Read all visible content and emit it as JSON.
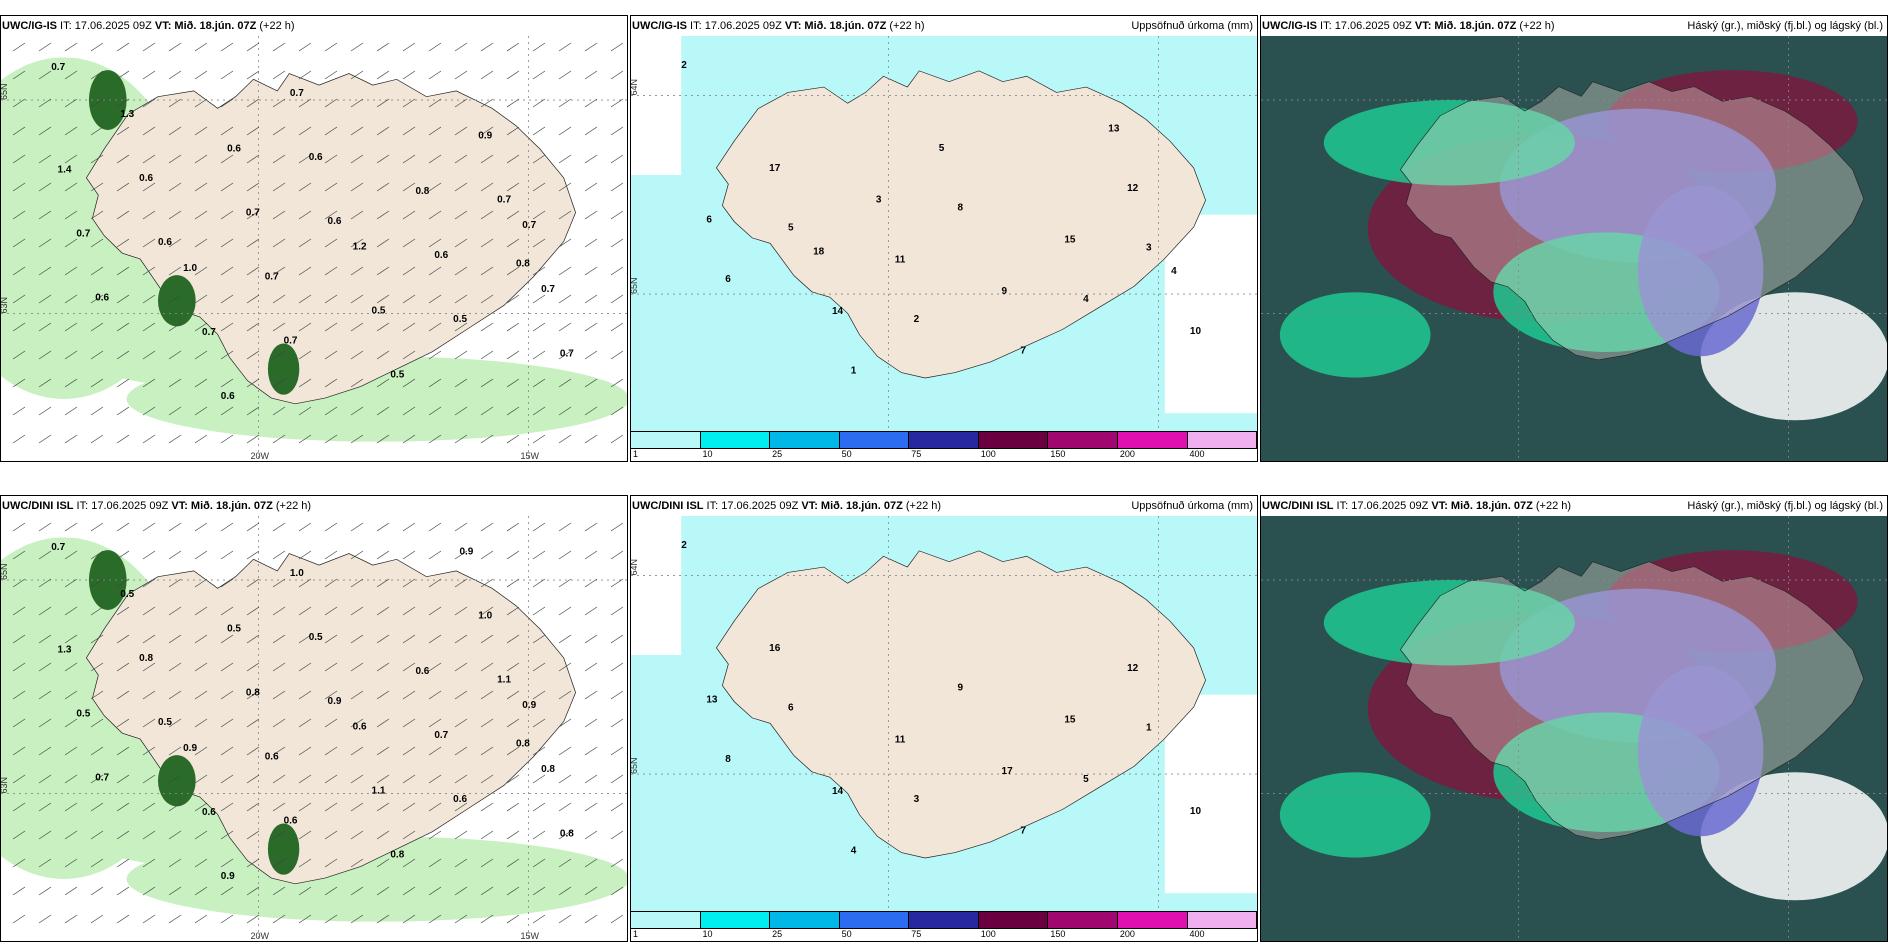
{
  "panels": [
    {
      "id": "igis-wind",
      "model": "UWC/IG-IS",
      "issue_text": " IT: 17.06.2025 09Z ",
      "valid_text": "VT: Mið. 18.jún. 07Z",
      "lead_text": " (+22 h)",
      "title_right": "",
      "labels": [
        "0.7",
        "0.7",
        "0.8",
        "0.6",
        "0.5",
        "0.6",
        "0.5",
        "0.6",
        "0.6",
        "0.7",
        "0.7",
        "0.7",
        "0.7",
        "0.6",
        "0.6",
        "0.5",
        "0.7",
        "0.6",
        "0.7",
        "0.7",
        "0.9",
        "1.0",
        "0.8",
        "1.3",
        "1.2",
        "1.4",
        "0.7",
        "0.7",
        "0.6"
      ],
      "ticks": [
        "20W",
        "15W",
        "63N",
        "65N"
      ]
    },
    {
      "id": "igis-precip",
      "model": "UWC/IG-IS",
      "issue_text": " IT: 17.06.2025 09Z ",
      "valid_text": "VT: Mið. 18.jún. 07Z",
      "lead_text": " (+22 h)",
      "title_right": "Uppsöfnuð úrkoma (mm)",
      "labels": [
        "2",
        "2",
        "3",
        "1",
        "4",
        "5",
        "7",
        "6",
        "8",
        "10",
        "11",
        "12",
        "14",
        "15",
        "17",
        "9",
        "6",
        "5",
        "4",
        "3",
        "13",
        "18"
      ],
      "ticks": [
        "65N",
        "64N"
      ]
    },
    {
      "id": "igis-cloud",
      "model": "UWC/IG-IS",
      "issue_text": " IT: 17.06.2025 09Z ",
      "valid_text": "VT: Mið. 18.jún. 07Z",
      "lead_text": " (+22 h)",
      "title_right": "Háský (gr.), miðský (fj.bl.) og lágský (bl.)",
      "labels": [],
      "ticks": []
    },
    {
      "id": "dini-wind",
      "model": "UWC/DINI ISL",
      "issue_text": " IT: 17.06.2025 09Z ",
      "valid_text": "VT: Mið. 18.jún. 07Z",
      "lead_text": " (+22 h)",
      "title_right": "",
      "labels": [
        "0.7",
        "0.6",
        "0.8",
        "0.9",
        "0.6",
        "0.5",
        "0.8",
        "0.7",
        "0.9",
        "0.8",
        "0.6",
        "1.1",
        "0.6",
        "0.7",
        "0.8",
        "1.1",
        "0.5",
        "0.5",
        "0.8",
        "0.8",
        "1.0",
        "0.9",
        "0.6",
        "0.5",
        "0.6",
        "1.3",
        "1.0",
        "0.9",
        "0.5",
        "0.9"
      ],
      "ticks": [
        "20W",
        "15W",
        "63N",
        "65N"
      ]
    },
    {
      "id": "dini-precip",
      "model": "UWC/DINI ISL",
      "issue_text": " IT: 17.06.2025 09Z ",
      "valid_text": "VT: Mið. 18.jún. 07Z",
      "lead_text": " (+22 h)",
      "title_right": "Uppsöfnuð úrkoma (mm)",
      "labels": [
        "2",
        "3",
        "1",
        "4",
        "5",
        "6",
        "7",
        "8",
        "9",
        "10",
        "11",
        "12",
        "14",
        "15",
        "16",
        "17",
        "13"
      ],
      "ticks": [
        "65N",
        "64N"
      ]
    },
    {
      "id": "dini-cloud",
      "model": "UWC/DINI ISL",
      "issue_text": " IT: 17.06.2025 09Z ",
      "valid_text": "VT: Mið. 18.jún. 07Z",
      "lead_text": " (+22 h)",
      "title_right": "Háský (gr.), miðský (fj.bl.) og lágský (bl.)",
      "labels": [],
      "ticks": []
    }
  ],
  "precip_legend": {
    "colors": [
      "#b8f8f8",
      "#00eef0",
      "#00b8e8",
      "#2c6cf0",
      "#2828a0",
      "#6a0040",
      "#a00870",
      "#e010b0",
      "#f0b0f0"
    ],
    "labels": [
      "1",
      "10",
      "25",
      "50",
      "75",
      "100",
      "150",
      "200",
      "400"
    ]
  },
  "colors": {
    "land": "#f2e6d8",
    "sea": "#ffffff",
    "wind_green": "#c8f0c0",
    "dark_green": "#2a6b2a",
    "precip_light": "#b8f8f8",
    "cloud_high": "#7a1a40",
    "cloud_mid": "#6a6ad0",
    "cloud_low": "#20c890",
    "cloud_dark": "#2a5050"
  }
}
